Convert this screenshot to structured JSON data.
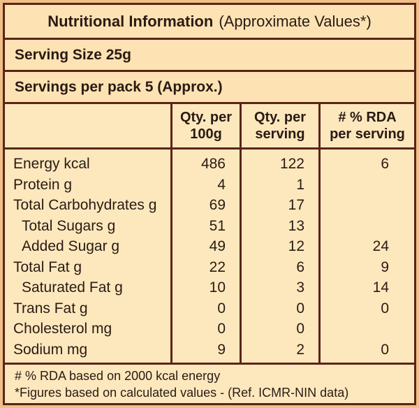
{
  "header": {
    "title_bold": "Nutritional Information",
    "title_rest": "(Approximate Values*)"
  },
  "serving_size": "Serving Size 25g",
  "servings_per_pack": "Servings per pack 5 (Approx.)",
  "columns": {
    "col1_line1": "Qty. per",
    "col1_line2": "100g",
    "col2_line1": "Qty. per",
    "col2_line2": "serving",
    "col3_line1": "# % RDA",
    "col3_line2": "per serving"
  },
  "rows": [
    {
      "name": "Energy kcal",
      "per100": "486",
      "perServing": "122",
      "rda": "6"
    },
    {
      "name": "Protein g",
      "per100": "4",
      "perServing": "1",
      "rda": ""
    },
    {
      "name": "Total Carbohydrates g",
      "per100": "69",
      "perServing": "17",
      "rda": ""
    },
    {
      "name": "Total Sugars g",
      "per100": "51",
      "perServing": "13",
      "rda": ""
    },
    {
      "name": "Added Sugar g",
      "per100": "49",
      "perServing": "12",
      "rda": "24"
    },
    {
      "name": "Total Fat g",
      "per100": "22",
      "perServing": "6",
      "rda": "9"
    },
    {
      "name": "Saturated Fat g",
      "per100": "10",
      "perServing": "3",
      "rda": "14"
    },
    {
      "name": "Trans Fat g",
      "per100": "0",
      "perServing": "0",
      "rda": "0"
    },
    {
      "name": "Cholesterol mg",
      "per100": "0",
      "perServing": "0",
      "rda": ""
    },
    {
      "name": "Sodium mg",
      "per100": "9",
      "perServing": "2",
      "rda": "0"
    }
  ],
  "footnotes": {
    "rda_note": "# % RDA based on 2000 kcal energy",
    "figures_note": "*Figures based on calculated values - (Ref. ICMR-NIN data)"
  }
}
